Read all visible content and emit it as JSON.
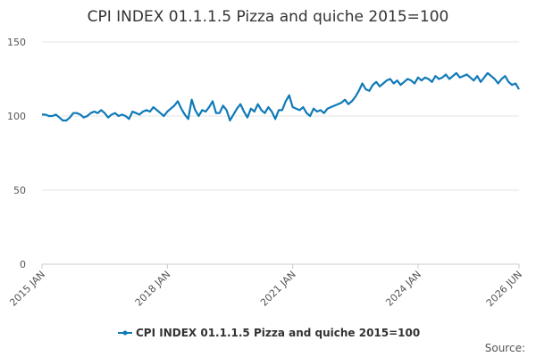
{
  "chart_data": {
    "type": "line",
    "title": "CPI INDEX 01.1.1.5 Pizza and quiche 2015=100",
    "categories": [
      "2015 JAN",
      null,
      null,
      null,
      null,
      null,
      null,
      null,
      null,
      null,
      null,
      null,
      null,
      null,
      null,
      null,
      null,
      null,
      null,
      null,
      null,
      null,
      null,
      null,
      null,
      null,
      null,
      null,
      null,
      null,
      null,
      null,
      null,
      null,
      null,
      null,
      "2018 JAN",
      null,
      null,
      null,
      null,
      null,
      null,
      null,
      null,
      null,
      null,
      null,
      null,
      null,
      null,
      null,
      null,
      null,
      null,
      null,
      null,
      null,
      null,
      null,
      null,
      null,
      null,
      null,
      null,
      null,
      null,
      null,
      null,
      null,
      null,
      null,
      "2021 JAN",
      null,
      null,
      null,
      null,
      null,
      null,
      null,
      null,
      null,
      null,
      null,
      null,
      null,
      null,
      null,
      null,
      null,
      null,
      null,
      null,
      null,
      null,
      null,
      null,
      null,
      null,
      null,
      null,
      null,
      null,
      null,
      null,
      null,
      null,
      null,
      "2024 JAN",
      null,
      null,
      null,
      null,
      null,
      null,
      null,
      null,
      null,
      null,
      null,
      null,
      null,
      null,
      null,
      null,
      null,
      null,
      null,
      null,
      null,
      null,
      null,
      null,
      null,
      null,
      null,
      null,
      "2026 JUN"
    ],
    "series": [
      {
        "name": "CPI INDEX 01.1.1.5 Pizza and quiche 2015=100",
        "color": "#0f7ab8",
        "values": [
          101,
          101,
          100,
          100,
          101,
          99,
          97,
          97,
          99,
          102,
          102,
          101,
          99,
          100,
          102,
          103,
          102,
          104,
          102,
          99,
          101,
          102,
          100,
          101,
          100,
          98,
          103,
          102,
          101,
          103,
          104,
          103,
          106,
          104,
          102,
          100,
          103,
          105,
          107,
          110,
          105,
          101,
          98,
          111,
          104,
          100,
          104,
          103,
          106,
          110,
          102,
          102,
          107,
          104,
          97,
          101,
          105,
          108,
          103,
          99,
          105,
          103,
          108,
          104,
          102,
          106,
          103,
          98,
          104,
          104,
          110,
          114,
          106,
          105,
          104,
          106,
          102,
          100,
          105,
          103,
          104,
          102,
          105,
          106,
          107,
          108,
          109,
          111,
          108,
          110,
          113,
          117,
          122,
          118,
          117,
          121,
          123,
          120,
          122,
          124,
          125,
          122,
          124,
          121,
          123,
          125,
          124,
          122,
          126,
          124,
          126,
          125,
          123,
          127,
          125,
          126,
          128,
          125,
          127,
          129,
          126,
          127,
          128,
          126,
          124,
          127,
          123,
          126,
          129,
          127,
          125,
          122,
          125,
          127,
          123,
          121,
          122,
          118
        ]
      }
    ],
    "ylim": [
      0,
      150
    ],
    "yticks": [
      0,
      50,
      100,
      150
    ],
    "grid": true,
    "source": "Source:"
  }
}
